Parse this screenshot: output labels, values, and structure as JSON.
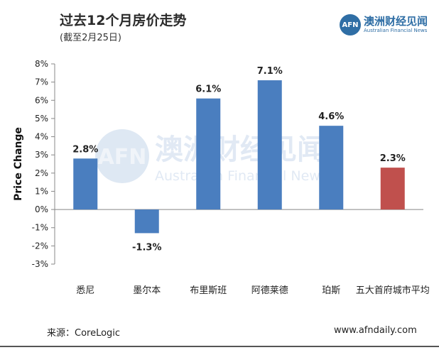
{
  "header": {
    "title": "过去12个月房价走势",
    "subtitle": "(截至2月25日)"
  },
  "logo": {
    "mark": "AFN",
    "name_cn": "澳洲财经见闻",
    "name_en": "Australian Financial News",
    "color": "#2f6ea5"
  },
  "watermark": {
    "mark": "AFN",
    "name_cn": "澳洲财经见闻",
    "name_en": "Australian Financial News"
  },
  "footer": {
    "source": "来源：CoreLogic",
    "website": "www.afndaily.com"
  },
  "chart_data": {
    "type": "bar",
    "title": "过去12个月房价走势",
    "subtitle": "(截至2月25日)",
    "xlabel": "",
    "ylabel": "Price Change",
    "ylim": [
      -3,
      8
    ],
    "yticks": [
      -3,
      -2,
      -1,
      0,
      1,
      2,
      3,
      4,
      5,
      6,
      7,
      8
    ],
    "ytick_labels": [
      "-3%",
      "-2%",
      "-1%",
      "0%",
      "1%",
      "2%",
      "3%",
      "4%",
      "5%",
      "6%",
      "7%",
      "8%"
    ],
    "grid": false,
    "categories": [
      "悉尼",
      "墨尔本",
      "布里斯班",
      "阿德莱德",
      "珀斯",
      "五大首府城市平均"
    ],
    "values": [
      2.8,
      -1.3,
      6.1,
      7.1,
      4.6,
      2.3
    ],
    "data_labels": [
      "2.8%",
      "-1.3%",
      "6.1%",
      "7.1%",
      "4.6%",
      "2.3%"
    ],
    "colors": [
      "#4a7ebf",
      "#4a7ebf",
      "#4a7ebf",
      "#4a7ebf",
      "#4a7ebf",
      "#c0504d"
    ]
  }
}
